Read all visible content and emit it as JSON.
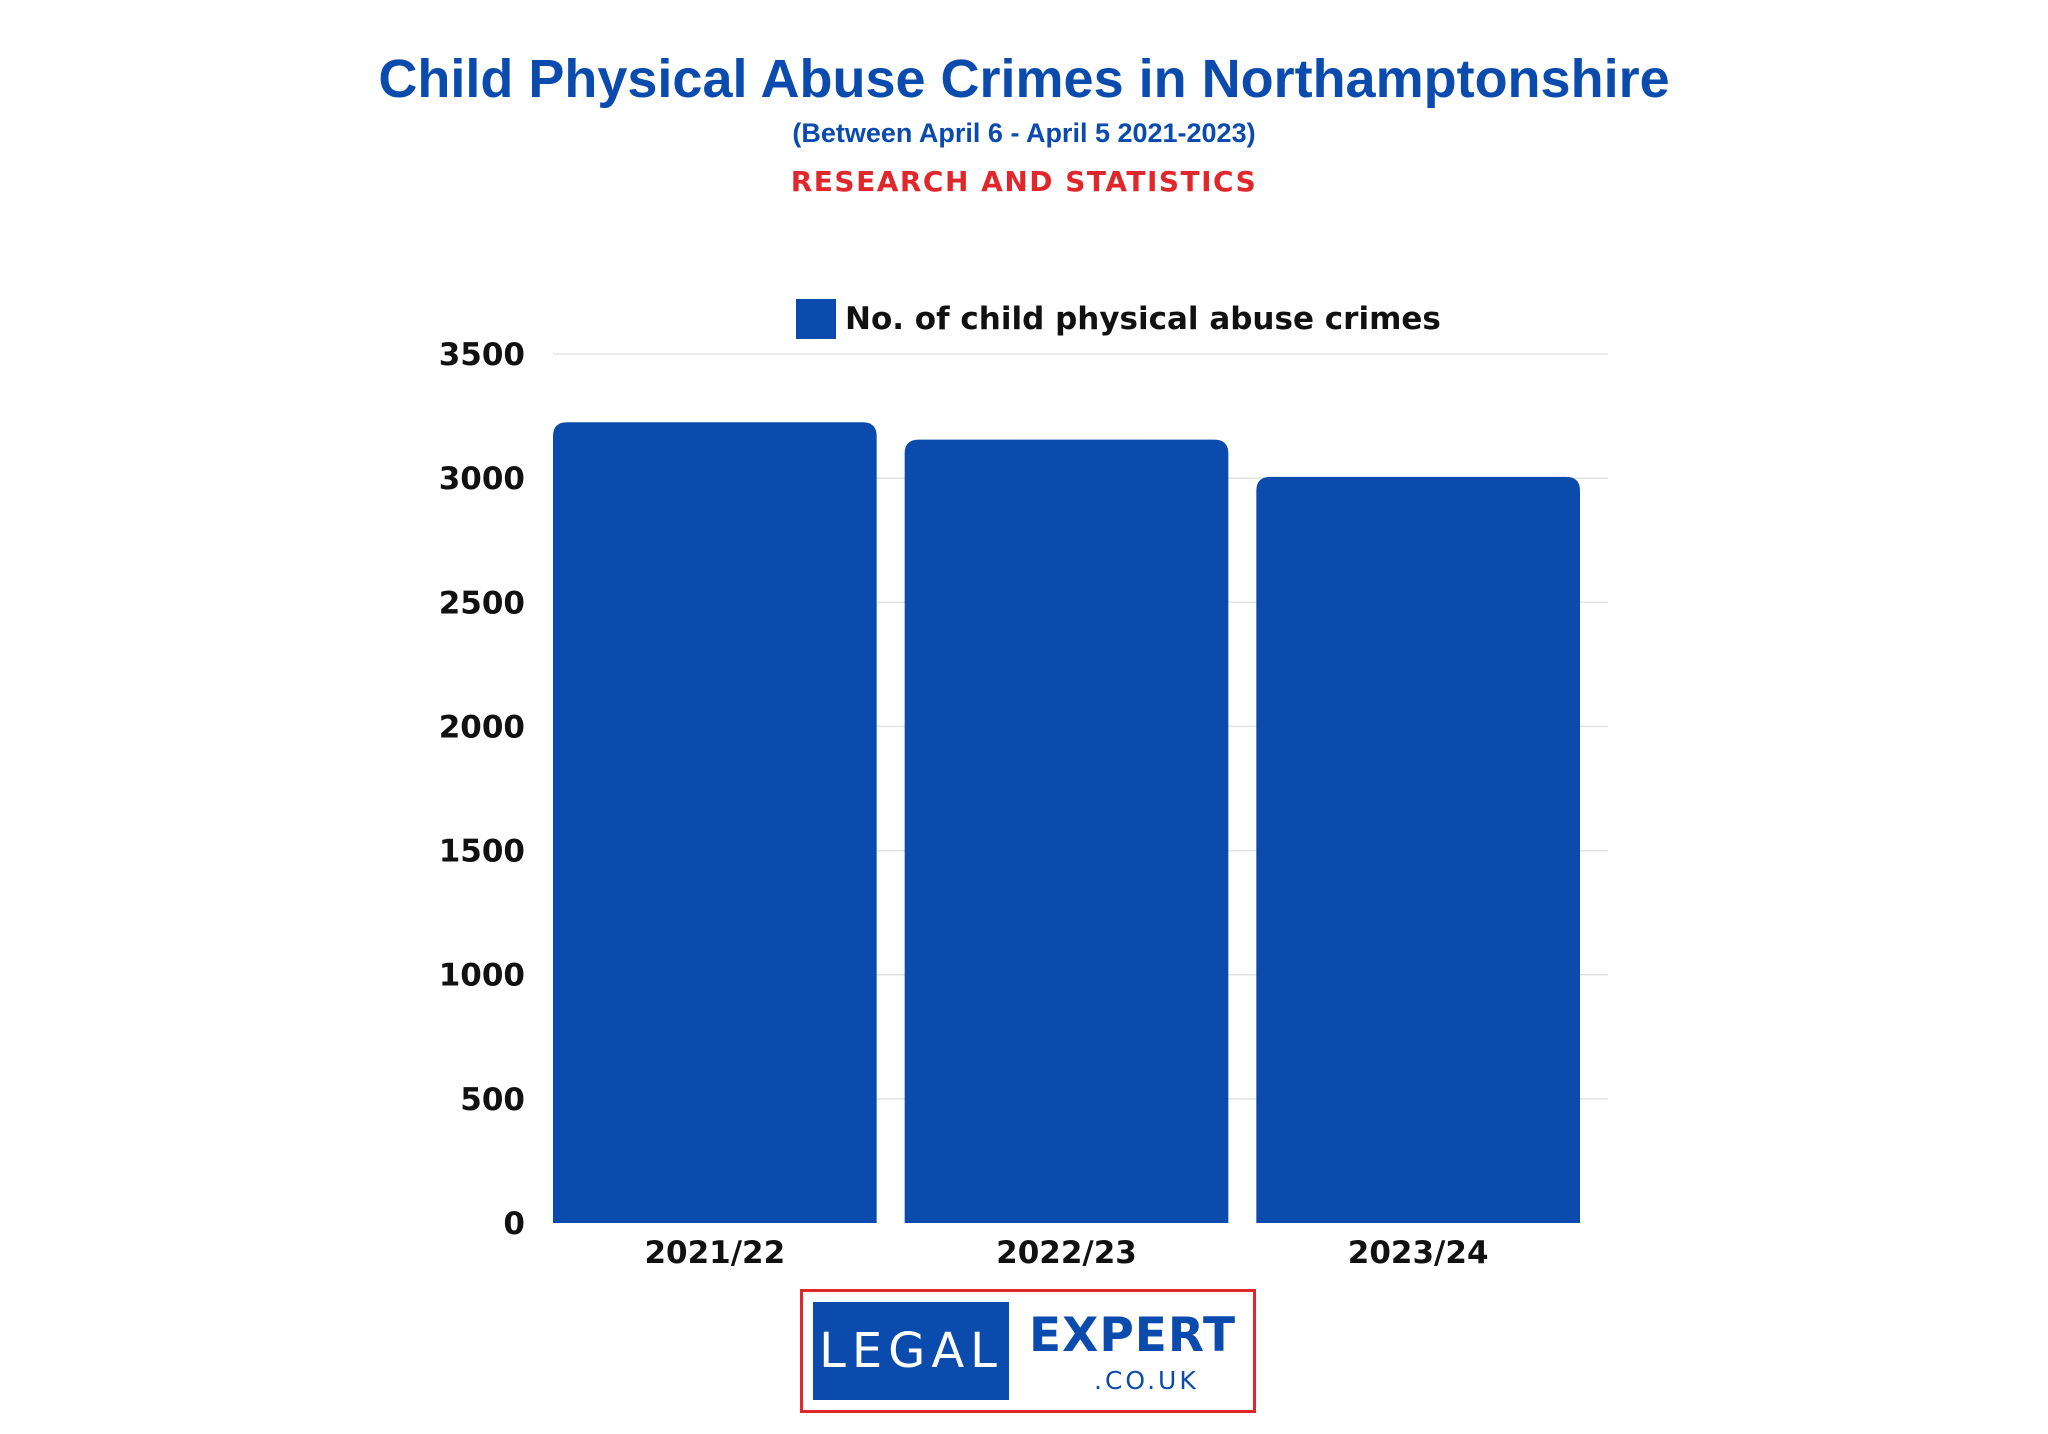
{
  "header": {
    "title": "Child Physical Abuse Crimes in Northamptonshire",
    "subtitle": "(Between April 6 - April 5 2021-2023)",
    "tagline": "RESEARCH AND STATISTICS"
  },
  "chart_data": {
    "type": "bar",
    "categories": [
      "2021/22",
      "2022/23",
      "2023/24"
    ],
    "series": [
      {
        "name": "No. of child physical abuse crimes",
        "values": [
          3225,
          3155,
          3005
        ],
        "color": "#0a4bad"
      }
    ],
    "ylim": [
      0,
      3500
    ],
    "yticks": [
      0,
      500,
      1000,
      1500,
      2000,
      2500,
      3000,
      3500
    ],
    "grid": true,
    "legend": "top-center",
    "xlabel": "",
    "ylabel": ""
  },
  "logo": {
    "left_text": "LEGAL",
    "right_text": "EXPERT",
    "domain_text": ".CO.UK",
    "colors": {
      "blue": "#0a4bad",
      "red": "#e0282c"
    }
  }
}
